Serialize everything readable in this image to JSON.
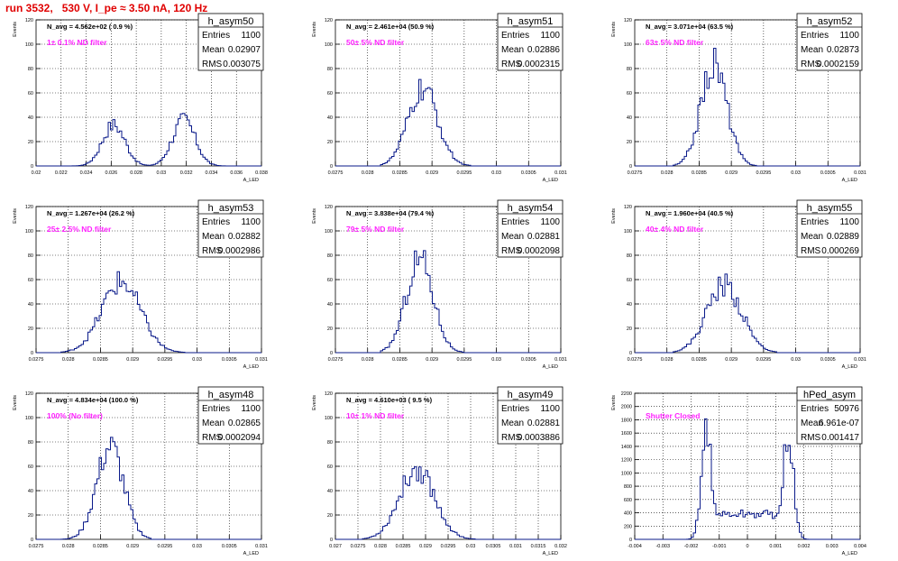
{
  "page": {
    "title": "run 3532,   530 V, I_pe ≈ 3.50 nA, 120 Hz"
  },
  "chart_data": [
    {
      "type": "histogram",
      "name": "h_asym50",
      "ylabel": "Events",
      "xlabel": "A_LED",
      "xlim": [
        0.02,
        0.038
      ],
      "ylim": [
        0,
        120
      ],
      "xticks": [
        "0.02",
        "0.022",
        "0.024",
        "0.026",
        "0.028",
        "0.03",
        "0.032",
        "0.034",
        "0.036",
        "0.038"
      ],
      "yticks": [
        "0",
        "20",
        "40",
        "60",
        "80",
        "100",
        "120"
      ],
      "stats": {
        "Entries": "1100",
        "Mean": "0.02907",
        "RMS": "0.003075"
      },
      "annotation": "N_avg = 4.562e+02 ( 0.9 %)",
      "filter_label": "1± 0.1% ND filter",
      "peaks": [
        {
          "mean": 0.0262,
          "sigma": 0.0009,
          "height": 34
        },
        {
          "mean": 0.0318,
          "sigma": 0.0009,
          "height": 38
        }
      ],
      "range": [
        0.022,
        0.0355
      ]
    },
    {
      "type": "histogram",
      "name": "h_asym51",
      "ylabel": "Events",
      "xlabel": "A_LED",
      "xlim": [
        0.0275,
        0.031
      ],
      "ylim": [
        0,
        120
      ],
      "xticks": [
        "0.0275",
        "0.028",
        "0.0285",
        "0.029",
        "0.0295",
        "0.03",
        "0.0305",
        "0.031"
      ],
      "yticks": [
        "0",
        "20",
        "40",
        "60",
        "80",
        "100",
        "120"
      ],
      "stats": {
        "Entries": "1100",
        "Mean": "0.02886",
        "RMS": "0.0002315"
      },
      "annotation": "N_avg = 2.461e+04 (50.9 %)",
      "filter_label": "50± 5% ND filter",
      "peaks": [
        {
          "mean": 0.02886,
          "sigma": 0.00023,
          "height": 63
        }
      ],
      "range": [
        0.0282,
        0.0296
      ]
    },
    {
      "type": "histogram",
      "name": "h_asym52",
      "ylabel": "Events",
      "xlabel": "A_LED",
      "xlim": [
        0.0275,
        0.031
      ],
      "ylim": [
        0,
        120
      ],
      "xticks": [
        "0.0275",
        "0.028",
        "0.0285",
        "0.029",
        "0.0295",
        "0.03",
        "0.0305",
        "0.031"
      ],
      "yticks": [
        "0",
        "20",
        "40",
        "60",
        "80",
        "100",
        "120"
      ],
      "stats": {
        "Entries": "1100",
        "Mean": "0.02873",
        "RMS": "0.0002159"
      },
      "annotation": "N_avg = 3.071e+04 (63.5 %)",
      "filter_label": "63± 5% ND filter",
      "peaks": [
        {
          "mean": 0.02873,
          "sigma": 0.0002,
          "height": 84
        }
      ],
      "range": [
        0.0281,
        0.0294
      ]
    },
    {
      "type": "histogram",
      "name": "h_asym53",
      "ylabel": "Events",
      "xlabel": "A_LED",
      "xlim": [
        0.0275,
        0.031
      ],
      "ylim": [
        0,
        120
      ],
      "xticks": [
        "0.0275",
        "0.028",
        "0.0285",
        "0.029",
        "0.0295",
        "0.03",
        "0.0305",
        "0.031"
      ],
      "yticks": [
        "0",
        "20",
        "40",
        "60",
        "80",
        "100",
        "120"
      ],
      "stats": {
        "Entries": "1100",
        "Mean": "0.02882",
        "RMS": "0.0002986"
      },
      "annotation": "N_avg = 1.267e+04 (26.2 %)",
      "filter_label": "25± 2.5% ND filter",
      "peaks": [
        {
          "mean": 0.02882,
          "sigma": 0.0003,
          "height": 58
        }
      ],
      "range": [
        0.0279,
        0.0298
      ]
    },
    {
      "type": "histogram",
      "name": "h_asym54",
      "ylabel": "Events",
      "xlabel": "A_LED",
      "xlim": [
        0.0275,
        0.031
      ],
      "ylim": [
        0,
        120
      ],
      "xticks": [
        "0.0275",
        "0.028",
        "0.0285",
        "0.029",
        "0.0295",
        "0.03",
        "0.0305",
        "0.031"
      ],
      "yticks": [
        "0",
        "20",
        "40",
        "60",
        "80",
        "100",
        "120"
      ],
      "stats": {
        "Entries": "1100",
        "Mean": "0.02881",
        "RMS": "0.0002098"
      },
      "annotation": "N_avg = 3.838e+04 (79.4 %)",
      "filter_label": "79± 5% ND filter",
      "peaks": [
        {
          "mean": 0.02881,
          "sigma": 0.00021,
          "height": 78
        }
      ],
      "range": [
        0.0282,
        0.0295
      ]
    },
    {
      "type": "histogram",
      "name": "h_asym55",
      "ylabel": "Events",
      "xlabel": "A_LED",
      "xlim": [
        0.0275,
        0.031
      ],
      "ylim": [
        0,
        120
      ],
      "xticks": [
        "0.0275",
        "0.028",
        "0.0285",
        "0.029",
        "0.0295",
        "0.03",
        "0.0305",
        "0.031"
      ],
      "yticks": [
        "0",
        "20",
        "40",
        "60",
        "80",
        "100",
        "120"
      ],
      "stats": {
        "Entries": "1100",
        "Mean": "0.02889",
        "RMS": "0.000269"
      },
      "annotation": "N_avg = 1.960e+04 (40.5 %)",
      "filter_label": "40± 4% ND filter",
      "peaks": [
        {
          "mean": 0.02889,
          "sigma": 0.00027,
          "height": 56
        }
      ],
      "range": [
        0.0281,
        0.0297
      ]
    },
    {
      "type": "histogram",
      "name": "h_asym48",
      "ylabel": "Events",
      "xlabel": "A_LED",
      "xlim": [
        0.0275,
        0.031
      ],
      "ylim": [
        0,
        120
      ],
      "xticks": [
        "0.0275",
        "0.028",
        "0.0285",
        "0.029",
        "0.0295",
        "0.03",
        "0.0305",
        "0.031"
      ],
      "yticks": [
        "0",
        "20",
        "40",
        "60",
        "80",
        "100",
        "120"
      ],
      "stats": {
        "Entries": "1100",
        "Mean": "0.02865",
        "RMS": "0.0002094"
      },
      "annotation": "N_avg = 4.834e+04 (100.0 %)",
      "filter_label": "100% (No filter)",
      "peaks": [
        {
          "mean": 0.02865,
          "sigma": 0.00021,
          "height": 76
        }
      ],
      "range": [
        0.0279,
        0.0293
      ]
    },
    {
      "type": "histogram",
      "name": "h_asym49",
      "ylabel": "Events",
      "xlabel": "A_LED",
      "xlim": [
        0.027,
        0.032
      ],
      "ylim": [
        0,
        120
      ],
      "xticks": [
        "0.027",
        "0.0275",
        "0.028",
        "0.0285",
        "0.029",
        "0.0295",
        "0.03",
        "0.0305",
        "0.031",
        "0.0315",
        "0.032"
      ],
      "yticks": [
        "0",
        "20",
        "40",
        "60",
        "80",
        "100",
        "120"
      ],
      "stats": {
        "Entries": "1100",
        "Mean": "0.02881",
        "RMS": "0.0003886"
      },
      "annotation": "N_avg = 4.610e+03 ( 9.5 %)",
      "filter_label": "10± 1% ND filter",
      "peaks": [
        {
          "mean": 0.02881,
          "sigma": 0.00039,
          "height": 58
        }
      ],
      "range": [
        0.0276,
        0.0301
      ]
    },
    {
      "type": "histogram",
      "name": "hPed_asym",
      "ylabel": "Events",
      "xlabel": "A_LED",
      "xlim": [
        -0.004,
        0.004
      ],
      "ylim": [
        0,
        2200
      ],
      "xticks": [
        "-0.004",
        "-0.003",
        "-0.002",
        "-0.001",
        "0",
        "0.001",
        "0.002",
        "0.003",
        "0.004"
      ],
      "yticks": [
        "0",
        "200",
        "400",
        "600",
        "800",
        "1000",
        "1200",
        "1400",
        "1600",
        "1800",
        "2000",
        "2200"
      ],
      "stats": {
        "Entries": "50976",
        "Mean": "6.961e-07",
        "RMS": "0.001417"
      },
      "annotation": "",
      "filter_label": "Shutter Closed",
      "peaks": [
        {
          "mean": -0.00145,
          "sigma": 0.00018,
          "height": 1700
        },
        {
          "mean": 0.00145,
          "sigma": 0.00018,
          "height": 1600
        }
      ],
      "baseline": {
        "from": -0.0014,
        "to": 0.0014,
        "level": 380
      },
      "range": [
        -0.0023,
        0.0023
      ]
    }
  ]
}
